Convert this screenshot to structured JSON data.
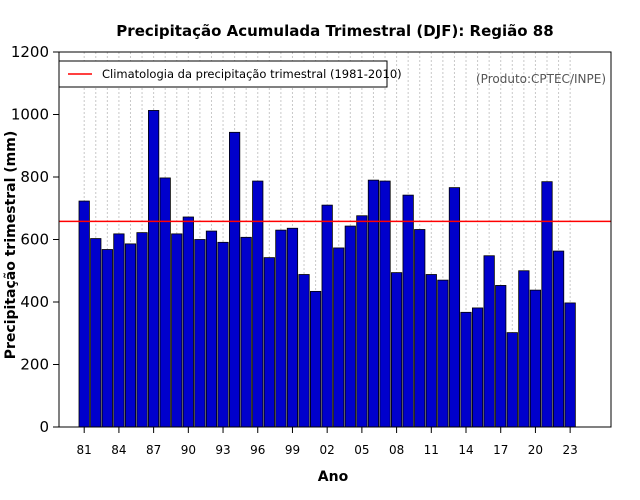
{
  "chart_data": {
    "type": "bar",
    "title": "Precipitação Acumulada Trimestral (DJF): Região 88",
    "xlabel": "Ano",
    "ylabel": "Precipitação trimestral (mm)",
    "source_note": "(Produto:CPTEC/INPE)",
    "ylim": [
      0,
      1200
    ],
    "yticks": [
      0,
      200,
      400,
      600,
      800,
      1000,
      1200
    ],
    "years": [
      1981,
      1982,
      1983,
      1984,
      1985,
      1986,
      1987,
      1988,
      1989,
      1990,
      1991,
      1992,
      1993,
      1994,
      1995,
      1996,
      1997,
      1998,
      1999,
      2000,
      2001,
      2002,
      2003,
      2004,
      2005,
      2006,
      2007,
      2008,
      2009,
      2010,
      2011,
      2012,
      2013,
      2014,
      2015,
      2016,
      2017,
      2018,
      2019,
      2020,
      2021,
      2022,
      2023
    ],
    "xtick_labels": [
      "81",
      "84",
      "87",
      "90",
      "93",
      "96",
      "99",
      "02",
      "05",
      "08",
      "11",
      "14",
      "17",
      "20",
      "23"
    ],
    "values": [
      723,
      603,
      568,
      618,
      586,
      622,
      1013,
      797,
      618,
      672,
      600,
      627,
      591,
      943,
      607,
      787,
      542,
      630,
      636,
      488,
      434,
      710,
      573,
      643,
      676,
      790,
      787,
      494,
      742,
      632,
      488,
      470,
      766,
      367,
      381,
      548,
      453,
      302,
      500,
      438,
      785,
      563,
      397
    ],
    "bar_color": "#0000cc",
    "climatology": {
      "label": "Climatologia da precipitação trimestral (1981-2010)",
      "value": 658,
      "color": "#ff0000"
    },
    "legend_position": "top-left",
    "grid": "vertical dotted"
  }
}
